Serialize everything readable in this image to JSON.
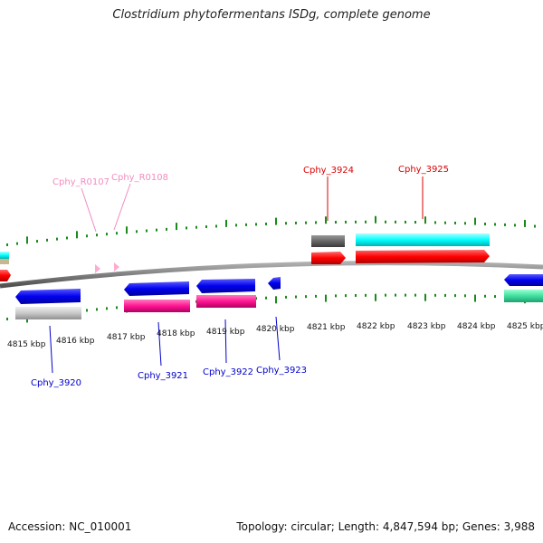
{
  "title": "Clostridium phytofermentans ISDg, complete genome",
  "accession_text": "Accession: NC_010001",
  "topology_text": "Topology: circular; Length: 4,847,594 bp; Genes: 3,988",
  "colors": {
    "backbone": "#808080",
    "tick": "#1a8a1a",
    "blue": "#0000ee",
    "red": "#ff0000",
    "cyan": "#00ffff",
    "magenta": "#ff1493",
    "gray": "#c8c8c8",
    "darkgray": "#666666",
    "teal": "#40e0a0",
    "pink_label": "#f28cc0",
    "red_label": "#dd0000",
    "blue_label": "#0000cc"
  },
  "scale_labels": [
    "4815 kbp",
    "4816 kbp",
    "4817 kbp",
    "4818 kbp",
    "4819 kbp",
    "4820 kbp",
    "4821 kbp",
    "4822 kbp",
    "4823 kbp",
    "4824 kbp",
    "4825 kbp"
  ],
  "gene_labels": {
    "rna": [
      "Cphy_R0107",
      "Cphy_R0108"
    ],
    "top": [
      "Cphy_3924",
      "Cphy_3925"
    ],
    "bottom": [
      "Cphy_3920",
      "Cphy_3921",
      "Cphy_3922",
      "Cphy_3923"
    ]
  }
}
